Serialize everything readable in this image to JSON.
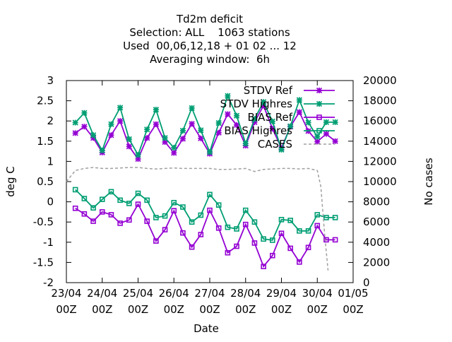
{
  "chart_data": {
    "type": "line",
    "title": [
      "Td2m deficit",
      "Selection: ALL    1063 stations",
      "Used  00,06,12,18 + 01 02 ... 12",
      "Averaging window:  6h"
    ],
    "xlabel": "Date",
    "ylabel": "deg C",
    "y2label": "No cases",
    "xlim": [
      0,
      8
    ],
    "x_unit": "days since 23/04 00Z",
    "ylim": [
      -2,
      3
    ],
    "y2lim": [
      0,
      20000
    ],
    "x_ticks": [
      {
        "label": "23/04",
        "sub": "00Z"
      },
      {
        "label": "24/04",
        "sub": "00Z"
      },
      {
        "label": "25/04",
        "sub": "00Z"
      },
      {
        "label": "26/04",
        "sub": "00Z"
      },
      {
        "label": "27/04",
        "sub": "00Z"
      },
      {
        "label": "28/04",
        "sub": "00Z"
      },
      {
        "label": "29/04",
        "sub": "00Z"
      },
      {
        "label": "30/04",
        "sub": "00Z"
      },
      {
        "label": "01/05",
        "sub": "00Z"
      }
    ],
    "y_ticks": [
      "-2",
      "-1.5",
      "-1",
      "-0.5",
      "0",
      "0.5",
      "1",
      "1.5",
      "2",
      "2.5",
      "3"
    ],
    "y2_ticks": [
      "0",
      "2000",
      "4000",
      "6000",
      "8000",
      "10000",
      "12000",
      "14000",
      "16000",
      "18000",
      "20000"
    ],
    "legend_position": "top-right",
    "x": [
      0.25,
      0.5,
      0.75,
      1.0,
      1.25,
      1.5,
      1.75,
      2.0,
      2.25,
      2.5,
      2.75,
      3.0,
      3.25,
      3.5,
      3.75,
      4.0,
      4.25,
      4.5,
      4.75,
      5.0,
      5.25,
      5.5,
      5.75,
      6.0,
      6.25,
      6.5,
      6.75,
      7.0,
      7.25,
      7.5
    ],
    "series": [
      {
        "name": "STDV Ref",
        "axis": "y1",
        "color": "#9400d3",
        "marker": "x",
        "dash": false,
        "values": [
          1.7,
          1.86,
          1.58,
          1.22,
          1.65,
          2.0,
          1.37,
          1.06,
          1.58,
          1.92,
          1.48,
          1.21,
          1.56,
          1.93,
          1.57,
          1.19,
          1.71,
          2.17,
          1.9,
          1.39,
          1.97,
          2.38,
          1.81,
          1.33,
          1.86,
          2.22,
          1.75,
          1.49,
          1.68,
          1.5
        ]
      },
      {
        "name": "STDV Highres",
        "axis": "y1",
        "color": "#009e73",
        "marker": "x",
        "dash": false,
        "values": [
          1.96,
          2.2,
          1.65,
          1.27,
          1.92,
          2.33,
          1.55,
          1.16,
          1.79,
          2.28,
          1.58,
          1.34,
          1.76,
          2.32,
          1.77,
          1.23,
          1.95,
          2.62,
          2.13,
          1.44,
          2.05,
          2.47,
          1.99,
          1.29,
          1.87,
          2.52,
          1.96,
          1.61,
          1.97,
          1.97
        ]
      },
      {
        "name": "BIAS Ref",
        "axis": "y1",
        "color": "#9400d3",
        "marker": "square",
        "dash": false,
        "values": [
          -0.16,
          -0.3,
          -0.48,
          -0.25,
          -0.32,
          -0.53,
          -0.45,
          -0.06,
          -0.48,
          -0.97,
          -0.69,
          -0.22,
          -0.77,
          -1.12,
          -0.81,
          -0.21,
          -0.65,
          -1.26,
          -1.1,
          -0.56,
          -1.02,
          -1.6,
          -1.33,
          -0.78,
          -1.15,
          -1.49,
          -1.13,
          -0.59,
          -0.94,
          -0.94
        ]
      },
      {
        "name": "BIAS Highres",
        "axis": "y1",
        "color": "#009e73",
        "marker": "square",
        "dash": false,
        "values": [
          0.3,
          0.08,
          -0.15,
          0.06,
          0.25,
          0.04,
          -0.04,
          0.21,
          0.04,
          -0.39,
          -0.35,
          -0.02,
          -0.13,
          -0.5,
          -0.33,
          0.18,
          -0.08,
          -0.63,
          -0.67,
          -0.21,
          -0.5,
          -0.92,
          -0.95,
          -0.44,
          -0.46,
          -0.72,
          -0.72,
          -0.32,
          -0.39,
          -0.39
        ]
      },
      {
        "name": "CASES",
        "axis": "y2",
        "color": "#a0a0a0",
        "marker": "none",
        "dash": true,
        "x": [
          0.0,
          0.25,
          0.5,
          0.75,
          1.0,
          1.25,
          1.5,
          1.75,
          2.0,
          2.25,
          2.5,
          2.75,
          3.0,
          3.25,
          3.5,
          3.75,
          4.0,
          4.25,
          4.5,
          4.75,
          5.0,
          5.25,
          5.5,
          5.75,
          6.0,
          6.25,
          6.5,
          6.75,
          7.0,
          7.1,
          7.2,
          7.3
        ],
        "values": [
          10000,
          11100,
          11300,
          11400,
          11300,
          11300,
          11350,
          11400,
          11400,
          11300,
          11250,
          11300,
          11350,
          11300,
          11300,
          11300,
          11300,
          11200,
          11200,
          11250,
          11300,
          11000,
          11200,
          11250,
          11300,
          11300,
          11250,
          11300,
          11100,
          9500,
          5000,
          1200
        ]
      }
    ]
  }
}
